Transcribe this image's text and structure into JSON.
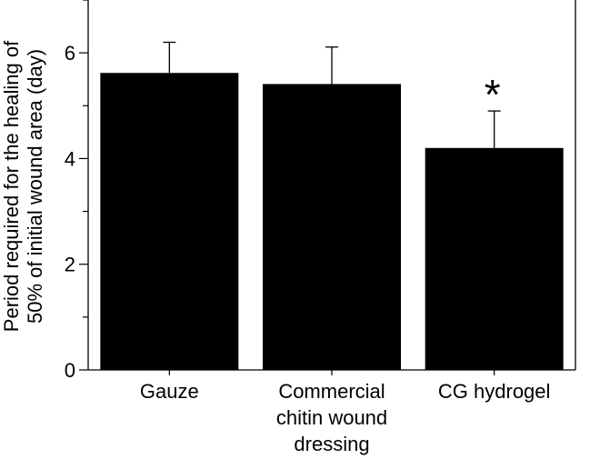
{
  "chart_data": {
    "type": "bar",
    "title": "",
    "xlabel": "",
    "ylabel_lines": [
      "Period required for the healing of",
      "50% of initial wound area (day)"
    ],
    "categories": [
      [
        "Gauze"
      ],
      [
        "Commercial",
        "chitin wound",
        "dressing"
      ],
      [
        "CG hydrogel"
      ]
    ],
    "values": [
      5.62,
      5.41,
      4.2
    ],
    "errors": [
      0.58,
      0.7,
      0.7
    ],
    "annotations": [
      "",
      "",
      "*"
    ],
    "ylim": [
      0,
      7
    ],
    "yticks": [
      0,
      2,
      4,
      6
    ],
    "ytick_labels": [
      "0",
      "2",
      "4",
      "6"
    ],
    "grid": false,
    "bar_color": "#000000"
  }
}
